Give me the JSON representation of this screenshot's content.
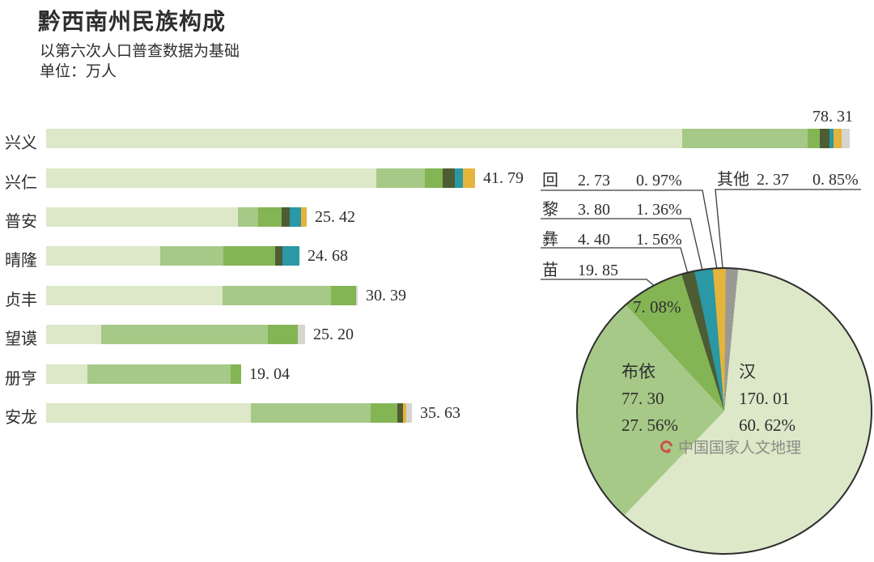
{
  "header": {
    "title": "黔西南州民族构成",
    "subtitle": "以第六次人口普查数据为基础",
    "unit": "单位：万人"
  },
  "colors": {
    "han": "#dce8c8",
    "buyei": "#a6c987",
    "miao": "#84b554",
    "yi": "#4d5c33",
    "li": "#2a99a5",
    "hui": "#e4b43c",
    "other_bar": "#d5d5cf",
    "other_pie": "#9a9a94",
    "pie_outline": "#2d2d2d",
    "text": "#2e2e2e",
    "watermark_text": "#8c8c86",
    "watermark_logo": "#cc5247"
  },
  "watermark": {
    "logo": "cnnhg-logo",
    "text": "中国国家人文地理"
  },
  "chart_data": [
    {
      "type": "bar",
      "variant": "stacked-horizontal",
      "title": "黔西南州民族构成",
      "unit": "万人",
      "xlim": [
        0,
        80
      ],
      "grid": false,
      "categories": [
        "兴义",
        "兴仁",
        "普安",
        "晴隆",
        "贞丰",
        "望谟",
        "册亨",
        "安龙"
      ],
      "values": [
        78.31,
        41.79,
        25.42,
        24.68,
        30.39,
        25.2,
        19.04,
        35.63
      ],
      "segment_keys": [
        "han",
        "buyei",
        "miao",
        "yi",
        "li",
        "hui",
        "other"
      ],
      "segment_names": [
        "汉",
        "布依",
        "苗",
        "彝",
        "黎",
        "回",
        "其他"
      ],
      "rows": [
        {
          "label": "兴义",
          "total": 78.31,
          "total_display": "78. 31",
          "segments_pct_estimated": {
            "han": 79.2,
            "buyei": 15.6,
            "miao": 1.5,
            "yi": 1.2,
            "li": 0.5,
            "hui": 1.0,
            "other": 1.0
          }
        },
        {
          "label": "兴仁",
          "total": 41.79,
          "total_display": "41. 79",
          "segments_pct_estimated": {
            "han": 76.9,
            "buyei": 11.4,
            "miao": 4.1,
            "yi": 2.8,
            "li": 1.9,
            "hui": 2.9,
            "other": 0
          }
        },
        {
          "label": "普安",
          "total": 25.42,
          "total_display": "25. 42",
          "segments_pct_estimated": {
            "han": 73.5,
            "buyei": 7.8,
            "miao": 9.0,
            "yi": 3.1,
            "li": 4.4,
            "hui": 2.2,
            "other": 0
          }
        },
        {
          "label": "晴隆",
          "total": 24.68,
          "total_display": "24. 68",
          "segments_pct_estimated": {
            "han": 45.2,
            "buyei": 24.7,
            "miao": 20.5,
            "yi": 2.9,
            "li": 6.7,
            "hui": 0,
            "other": 0
          }
        },
        {
          "label": "贞丰",
          "total": 30.39,
          "total_display": "30. 39",
          "segments_pct_estimated": {
            "han": 56.5,
            "buyei": 35.0,
            "miao": 8.0,
            "yi": 0,
            "li": 0,
            "hui": 0,
            "other": 0.5
          }
        },
        {
          "label": "望谟",
          "total": 25.2,
          "total_display": "25. 20",
          "segments_pct_estimated": {
            "han": 21.2,
            "buyei": 64.4,
            "miao": 11.6,
            "yi": 0,
            "li": 0,
            "hui": 0,
            "other": 2.8
          }
        },
        {
          "label": "册亨",
          "total": 19.04,
          "total_display": "19. 04",
          "segments_pct_estimated": {
            "han": 21.3,
            "buyei": 73.4,
            "miao": 5.3,
            "yi": 0,
            "li": 0,
            "hui": 0,
            "other": 0
          }
        },
        {
          "label": "安龙",
          "total": 35.63,
          "total_display": "35. 63",
          "segments_pct_estimated": {
            "han": 56.0,
            "buyei": 32.8,
            "miao": 7.3,
            "yi": 1.5,
            "li": 0,
            "hui": 0.9,
            "other": 1.5
          }
        }
      ]
    },
    {
      "type": "pie",
      "unit": "万人",
      "legend_position": "callouts",
      "slices": [
        {
          "name": "汉",
          "key": "han",
          "value": 170.01,
          "pct": 60.62,
          "value_display": "170. 01",
          "pct_display": "60. 62%"
        },
        {
          "name": "布依",
          "key": "buyei",
          "value": 77.3,
          "pct": 27.56,
          "value_display": "77. 30",
          "pct_display": "27. 56%"
        },
        {
          "name": "苗",
          "key": "miao",
          "value": 19.85,
          "pct": 7.08,
          "value_display": "19. 85",
          "pct_display": "7. 08%"
        },
        {
          "name": "彝",
          "key": "yi",
          "value": 4.4,
          "pct": 1.56,
          "value_display": "4. 40",
          "pct_display": "1. 56%"
        },
        {
          "name": "黎",
          "key": "li",
          "value": 3.8,
          "pct": 1.36,
          "value_display": "3. 80",
          "pct_display": "1. 36%"
        },
        {
          "name": "回",
          "key": "hui",
          "value": 2.73,
          "pct": 0.97,
          "value_display": "2. 73",
          "pct_display": "0. 97%"
        },
        {
          "name": "其他",
          "key": "other",
          "value": 2.37,
          "pct": 0.85,
          "value_display": "2. 37",
          "pct_display": "0. 85%"
        }
      ]
    }
  ]
}
